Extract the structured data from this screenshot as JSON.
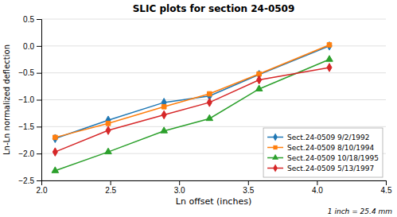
{
  "chart_data": {
    "type": "line",
    "title": "SLIC plots for section 24-0509",
    "x_label": "Ln offset (inches)",
    "y_label": "Ln-Ln normalized deflection",
    "annotations": [
      "1 inch = 25.4 mm"
    ],
    "x": [
      2.1,
      2.485,
      2.89,
      3.22,
      3.58,
      4.09
    ],
    "series": [
      {
        "name": "Sect.24-0509  9/2/1992",
        "marker": "diamond",
        "line_style": "solid",
        "values": [
          -1.72,
          -1.38,
          -1.05,
          -0.93,
          -0.53,
          0.0
        ]
      },
      {
        "name": "Sect.24-0509  8/10/1994",
        "marker": "square",
        "line_style": "solid",
        "values": [
          -1.7,
          -1.44,
          -1.13,
          -0.89,
          -0.52,
          0.02
        ]
      },
      {
        "name": "Sect.24-0509  10/18/1995",
        "marker": "triangle",
        "line_style": "solid",
        "values": [
          -2.32,
          -1.97,
          -1.58,
          -1.35,
          -0.8,
          -0.25
        ]
      },
      {
        "name": "Sect.24-0509  5/13/1997",
        "marker": "diamond",
        "line_style": "solid",
        "values": [
          -1.97,
          -1.57,
          -1.28,
          -1.05,
          -0.63,
          -0.4
        ]
      }
    ],
    "xlim": [
      2.0,
      4.5
    ],
    "ylim": [
      -2.5,
      0.5
    ],
    "xticks": [
      {
        "value": 2.0,
        "label": "2.0"
      },
      2.5,
      {
        "value": 3.0,
        "label": "3.0"
      },
      3.5,
      {
        "value": 4.0,
        "label": "4.0"
      },
      4.5
    ],
    "yticks": [
      {
        "value": -2.5,
        "label": "−2.5"
      },
      {
        "value": -2.0,
        "label": "−2.0"
      },
      {
        "value": -1.5,
        "label": "−1.5"
      },
      {
        "value": -1.0,
        "label": "−1.0"
      },
      {
        "value": -0.5,
        "label": "−0.5"
      },
      {
        "value": 0.0,
        "label": "0.0"
      },
      0.5
    ],
    "grid": "y",
    "legend": "lower right"
  }
}
